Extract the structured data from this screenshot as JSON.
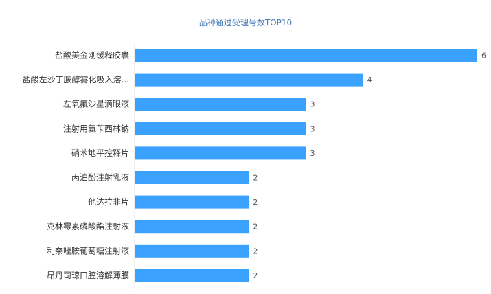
{
  "chart_data": {
    "type": "bar",
    "orientation": "horizontal",
    "title": "品种通过受理号数TOP10",
    "xlabel": "",
    "ylabel": "",
    "xlim": [
      0,
      6
    ],
    "grid": false,
    "bar_color": "#3aa1ff",
    "title_color": "#4a7ebb",
    "categories": [
      "盐酸美金刚缓释胶囊",
      "盐酸左沙丁胺醇雾化吸入溶...",
      "左氧氟沙星滴眼液",
      "注射用氨苄西林钠",
      "硝苯地平控释片",
      "丙泊酚注射乳液",
      "他达拉非片",
      "克林霉素磷酸酯注射液",
      "利奈唑胺葡萄糖注射液",
      "昂丹司琼口腔溶解薄膜"
    ],
    "values": [
      6,
      4,
      3,
      3,
      3,
      2,
      2,
      2,
      2,
      2
    ]
  }
}
